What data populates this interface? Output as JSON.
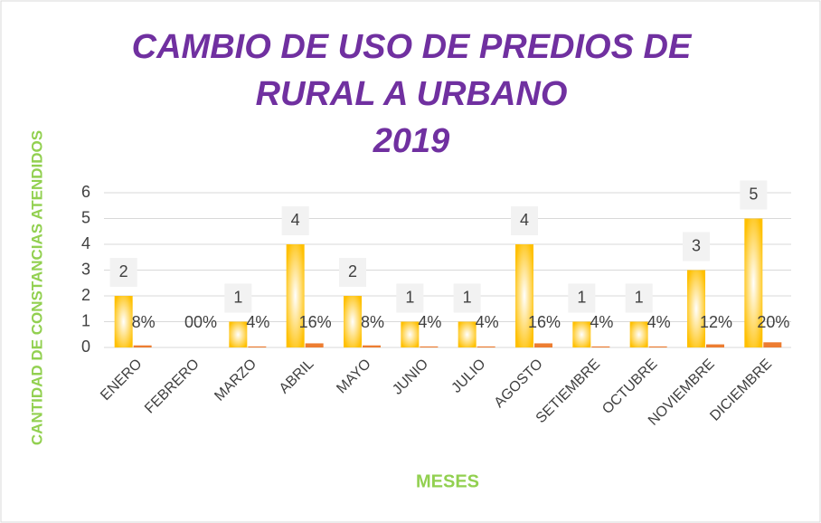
{
  "chart_data": {
    "type": "bar",
    "title": [
      "CAMBIO DE USO DE PREDIOS DE",
      "RURAL A URBANO",
      "2019"
    ],
    "y_label": "CANTIDAD DE CONSTANCIAS ATENDIDOS",
    "x_label": "MESES",
    "categories": [
      "ENERO",
      "FEBRERO",
      "MARZO",
      "ABRIL",
      "MAYO",
      "JUNIO",
      "JULIO",
      "AGOSTO",
      "SETIEMBRE",
      "OCTUBRE",
      "NOVIEMBRE",
      "DICIEMBRE"
    ],
    "series": [
      {
        "color": "#ffc000",
        "values": [
          2,
          0,
          1,
          4,
          2,
          1,
          1,
          4,
          1,
          1,
          3,
          5
        ]
      },
      {
        "color": "#ed7d31",
        "values": [
          0.08,
          0,
          0.04,
          0.16,
          0.08,
          0.04,
          0.04,
          0.16,
          0.04,
          0.04,
          0.12,
          0.2
        ],
        "value_labels": [
          "8%",
          "00%",
          "4%",
          "16%",
          "8%",
          "4%",
          "4%",
          "16%",
          "4%",
          "4%",
          "12%",
          "20%"
        ]
      }
    ],
    "ylim": [
      0,
      6
    ],
    "yticks": [
      0,
      1,
      2,
      3,
      4,
      5,
      6
    ],
    "grid": true
  }
}
